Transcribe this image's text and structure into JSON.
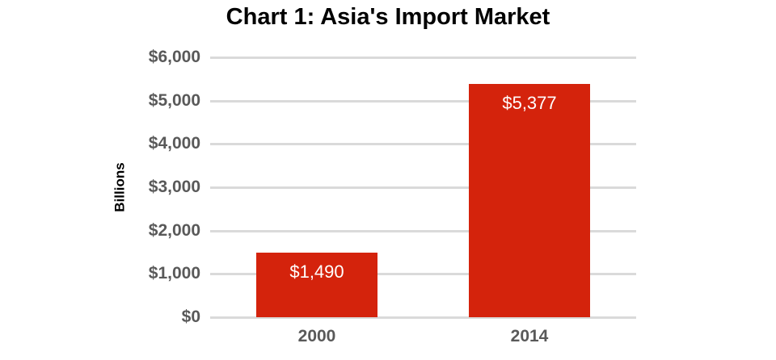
{
  "chart_data": {
    "type": "bar",
    "title": "Chart 1: Asia's Import Market",
    "ylabel": "Billions",
    "xlabel": "",
    "categories": [
      "2000",
      "2014"
    ],
    "values": [
      1490,
      5377
    ],
    "value_labels": [
      "$1,490",
      "$5,377"
    ],
    "ylim": [
      0,
      6000
    ],
    "ytick_interval": 1000,
    "ytick_labels": [
      "$0",
      "$1,000",
      "$2,000",
      "$3,000",
      "$4,000",
      "$5,000",
      "$6,000"
    ],
    "grid": true,
    "legend": "none",
    "colors": {
      "bar_fill": "#d4230c",
      "bar_label_text": "#ffffff",
      "axis_tick_text": "#595959",
      "gridline": "#dadada",
      "title_text": "#000000",
      "background": "#ffffff"
    }
  }
}
